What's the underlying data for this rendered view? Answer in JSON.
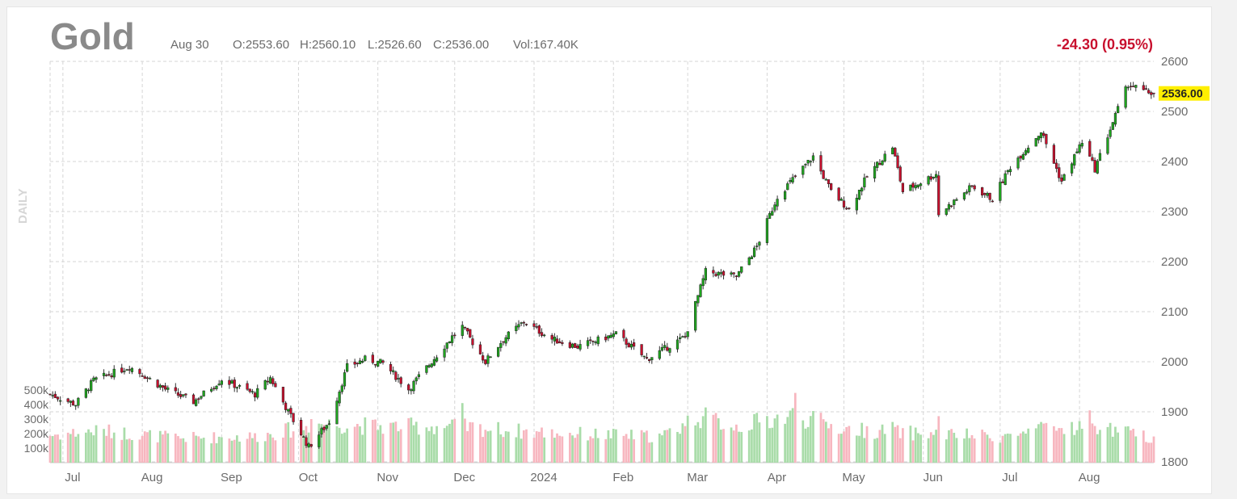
{
  "header": {
    "symbol": "Gold",
    "date": "Aug 30",
    "open": "O:2553.60",
    "high": "H:2560.10",
    "low": "L:2526.60",
    "close": "C:2536.00",
    "volume": "Vol:167.40K",
    "change": "-24.30 (0.95%)",
    "period": "DAILY"
  },
  "colors": {
    "up_candle": "#1fa51f",
    "down_candle": "#c8102e",
    "up_volume": "#a9dca9",
    "down_volume": "#f7b6bf",
    "grid": "#d6d6d6",
    "last_price_tag": "#ffef00",
    "change_text": "#c8102e"
  },
  "chart_data": {
    "type": "candlestick",
    "last_price_label": "2536.00",
    "price_axis": {
      "ticks": [
        2600,
        2500,
        2400,
        2300,
        2200,
        2100,
        2000,
        1900,
        1800
      ],
      "ylim": [
        1800,
        2600
      ]
    },
    "volume_axis": {
      "ticks": [
        "500k",
        "400k",
        "300k",
        "200k",
        "100k"
      ],
      "values": [
        500000,
        400000,
        300000,
        200000,
        100000
      ]
    },
    "x_labels": [
      "Jul",
      "Aug",
      "Sep",
      "Oct",
      "Nov",
      "Dec",
      "2024",
      "Feb",
      "Mar",
      "Apr",
      "May",
      "Jun",
      "Jul",
      "Aug"
    ],
    "close_path": [
      [
        "2023-06-26",
        1935
      ],
      [
        "2023-07-06",
        1915
      ],
      [
        "2023-07-13",
        1963
      ],
      [
        "2023-07-27",
        1990
      ],
      [
        "2023-08-01",
        1975
      ],
      [
        "2023-08-10",
        1945
      ],
      [
        "2023-08-21",
        1920
      ],
      [
        "2023-09-01",
        1965
      ],
      [
        "2023-09-14",
        1935
      ],
      [
        "2023-09-20",
        1968
      ],
      [
        "2023-09-27",
        1900
      ],
      [
        "2023-10-05",
        1830
      ],
      [
        "2023-10-13",
        1880
      ],
      [
        "2023-10-20",
        1990
      ],
      [
        "2023-10-27",
        2005
      ],
      [
        "2023-11-03",
        1997
      ],
      [
        "2023-11-13",
        1945
      ],
      [
        "2023-11-30",
        2050
      ],
      [
        "2023-12-04",
        2070
      ],
      [
        "2023-12-13",
        2000
      ],
      [
        "2023-12-20",
        2045
      ],
      [
        "2023-12-28",
        2080
      ],
      [
        "2024-01-08",
        2045
      ],
      [
        "2024-01-18",
        2030
      ],
      [
        "2024-02-02",
        2055
      ],
      [
        "2024-02-14",
        2005
      ],
      [
        "2024-02-29",
        2050
      ],
      [
        "2024-03-08",
        2180
      ],
      [
        "2024-03-20",
        2170
      ],
      [
        "2024-03-28",
        2230
      ],
      [
        "2024-04-05",
        2330
      ],
      [
        "2024-04-12",
        2370
      ],
      [
        "2024-04-19",
        2410
      ],
      [
        "2024-04-26",
        2340
      ],
      [
        "2024-05-03",
        2305
      ],
      [
        "2024-05-10",
        2370
      ],
      [
        "2024-05-20",
        2430
      ],
      [
        "2024-05-24",
        2340
      ],
      [
        "2024-06-06",
        2375
      ],
      [
        "2024-06-07",
        2295
      ],
      [
        "2024-06-20",
        2350
      ],
      [
        "2024-06-28",
        2325
      ],
      [
        "2024-07-05",
        2390
      ],
      [
        "2024-07-17",
        2460
      ],
      [
        "2024-07-25",
        2360
      ],
      [
        "2024-08-02",
        2440
      ],
      [
        "2024-08-07",
        2385
      ],
      [
        "2024-08-16",
        2505
      ],
      [
        "2024-08-20",
        2555
      ],
      [
        "2024-08-26",
        2540
      ],
      [
        "2024-08-30",
        2536
      ]
    ],
    "volume_path": [
      [
        "2023-06-26",
        190000
      ],
      [
        "2023-07-15",
        220000
      ],
      [
        "2023-08-15",
        170000
      ],
      [
        "2023-09-15",
        180000
      ],
      [
        "2023-10-10",
        270000
      ],
      [
        "2023-11-01",
        250000
      ],
      [
        "2023-12-01",
        250000
      ],
      [
        "2024-01-01",
        210000
      ],
      [
        "2024-02-01",
        190000
      ],
      [
        "2024-02-20",
        180000
      ],
      [
        "2024-03-05",
        320000
      ],
      [
        "2024-03-20",
        250000
      ],
      [
        "2024-04-12",
        330000
      ],
      [
        "2024-05-01",
        230000
      ],
      [
        "2024-06-01",
        200000
      ],
      [
        "2024-07-01",
        180000
      ],
      [
        "2024-08-05",
        260000
      ],
      [
        "2024-08-30",
        167400
      ]
    ],
    "volume_spikes": [
      [
        "2023-10-06",
        300000
      ],
      [
        "2023-12-04",
        410000
      ],
      [
        "2024-03-08",
        380000
      ],
      [
        "2024-04-12",
        480000
      ],
      [
        "2024-05-20",
        280000
      ],
      [
        "2024-06-07",
        320000
      ],
      [
        "2024-07-17",
        280000
      ],
      [
        "2024-08-05",
        360000
      ]
    ]
  }
}
